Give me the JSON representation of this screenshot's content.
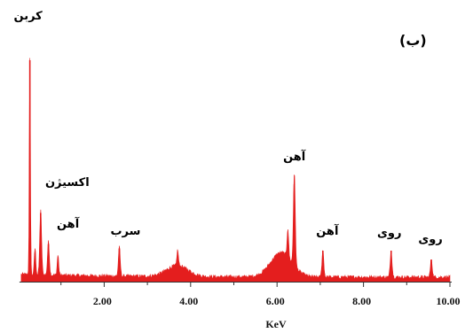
{
  "chart_data": {
    "type": "area",
    "panel_label": "(ب)",
    "xlabel": "KeV",
    "ylabel": "",
    "xlim": [
      0.0,
      10.0
    ],
    "ylim": [
      0,
      100
    ],
    "x_ticks": [
      {
        "value": 2.0,
        "label": "2.00"
      },
      {
        "value": 4.0,
        "label": "4.00"
      },
      {
        "value": 6.0,
        "label": "6.00"
      },
      {
        "value": 8.0,
        "label": "8.00"
      },
      {
        "value": 10.0,
        "label": "10.00"
      }
    ],
    "series_color": "#e41e1e",
    "peaks": [
      {
        "x": 0.28,
        "y": 100,
        "label": "کربن"
      },
      {
        "x": 0.53,
        "y": 31,
        "label": "اکسیژن"
      },
      {
        "x": 0.71,
        "y": 17,
        "label": "آهن"
      },
      {
        "x": 2.35,
        "y": 15,
        "label": "سرب"
      },
      {
        "x": 6.4,
        "y": 44,
        "label": "آهن"
      },
      {
        "x": 7.06,
        "y": 14,
        "label": "آهن"
      },
      {
        "x": 8.64,
        "y": 14,
        "label": "روی"
      },
      {
        "x": 9.57,
        "y": 10,
        "label": "روی"
      }
    ],
    "minor_peaks": [
      {
        "x": 0.4,
        "y": 12
      },
      {
        "x": 0.93,
        "y": 9
      },
      {
        "x": 3.7,
        "y": 7
      },
      {
        "x": 6.25,
        "y": 13
      }
    ],
    "broad_humps": [
      {
        "x": 3.69,
        "y": 5
      },
      {
        "x": 6.1,
        "y": 11
      }
    ],
    "baseline": 2
  }
}
